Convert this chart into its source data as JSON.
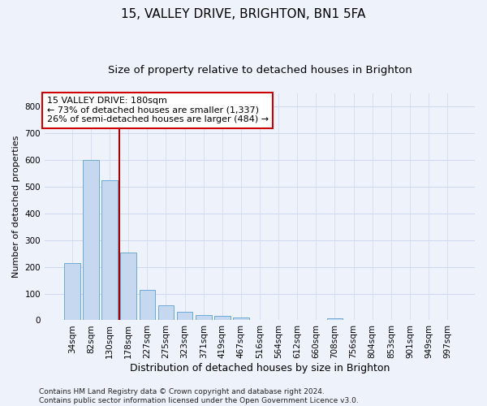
{
  "title": "15, VALLEY DRIVE, BRIGHTON, BN1 5FA",
  "subtitle": "Size of property relative to detached houses in Brighton",
  "xlabel": "Distribution of detached houses by size in Brighton",
  "ylabel": "Number of detached properties",
  "categories": [
    "34sqm",
    "82sqm",
    "130sqm",
    "178sqm",
    "227sqm",
    "275sqm",
    "323sqm",
    "371sqm",
    "419sqm",
    "467sqm",
    "516sqm",
    "564sqm",
    "612sqm",
    "660sqm",
    "708sqm",
    "756sqm",
    "804sqm",
    "853sqm",
    "901sqm",
    "949sqm",
    "997sqm"
  ],
  "values": [
    213,
    600,
    525,
    255,
    115,
    57,
    33,
    20,
    17,
    12,
    0,
    0,
    0,
    0,
    8,
    0,
    0,
    0,
    0,
    0,
    0
  ],
  "bar_color": "#c5d8f0",
  "bar_edge_color": "#6aaad4",
  "background_color": "#eef2fb",
  "grid_color": "#d0d8f0",
  "vline_color": "#aa0000",
  "vline_x_index": 2.5,
  "annotation_text": "15 VALLEY DRIVE: 180sqm\n← 73% of detached houses are smaller (1,337)\n26% of semi-detached houses are larger (484) →",
  "annotation_box_color": "#ffffff",
  "annotation_box_edge": "#cc0000",
  "ylim": [
    0,
    850
  ],
  "yticks": [
    0,
    100,
    200,
    300,
    400,
    500,
    600,
    700,
    800
  ],
  "footnote": "Contains HM Land Registry data © Crown copyright and database right 2024.\nContains public sector information licensed under the Open Government Licence v3.0.",
  "title_fontsize": 11,
  "subtitle_fontsize": 9.5,
  "xlabel_fontsize": 9,
  "ylabel_fontsize": 8,
  "tick_fontsize": 7.5,
  "annotation_fontsize": 8,
  "footnote_fontsize": 6.5
}
